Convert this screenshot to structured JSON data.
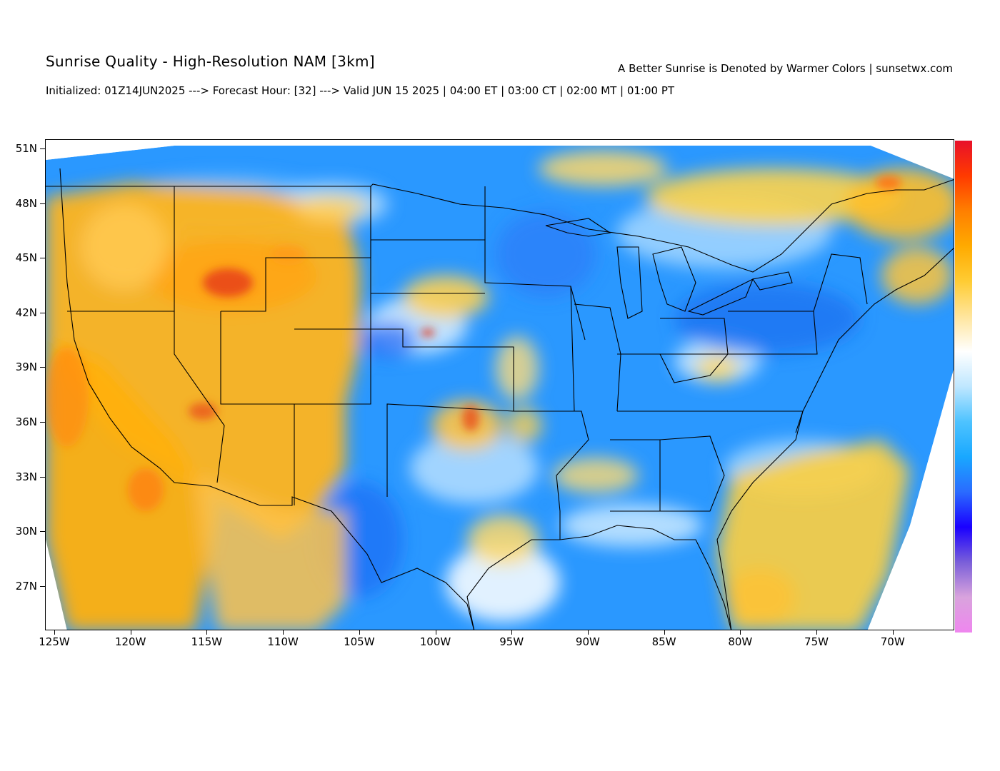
{
  "header": {
    "title": "Sunrise Quality - High-Resolution NAM [3km]",
    "tagline": "A Better Sunrise is Denoted by Warmer Colors | sunsetwx.com",
    "subtitle": "Initialized: 01Z14JUN2025 ---> Forecast Hour: [32] ---> Valid JUN 15 2025 | 04:00 ET | 03:00 CT | 02:00 MT | 01:00 PT"
  },
  "map": {
    "region": "Contiguous United States",
    "lat_range": [
      25,
      51.5
    ],
    "lon_range": [
      -125.5,
      -65.5
    ],
    "lat_ticks": [
      "51N",
      "48N",
      "45N",
      "42N",
      "39N",
      "36N",
      "33N",
      "30N",
      "27N"
    ],
    "lon_ticks": [
      "125W",
      "120W",
      "115W",
      "110W",
      "105W",
      "100W",
      "95W",
      "90W",
      "85W",
      "80W",
      "75W",
      "70W"
    ],
    "colors": {
      "poor_blue": "#1a8fff",
      "fair_lightblue": "#9ed3ff",
      "neutral_white": "#ffffff",
      "good_yellow": "#ffd34a",
      "better_orange": "#ffad12",
      "best_red": "#e8281e",
      "outline": "#000000"
    }
  },
  "colorbar": {
    "orientation": "vertical",
    "stops": [
      "#ef86ef",
      "#d9a3dd",
      "#7a5fd9",
      "#1a00ff",
      "#2a6bff",
      "#19a8ff",
      "#4ec3ff",
      "#bfe7ff",
      "#ffffff",
      "#ffe59c",
      "#ffcc33",
      "#ffaa00",
      "#ff7f00",
      "#ff3a00",
      "#e8102a"
    ]
  }
}
